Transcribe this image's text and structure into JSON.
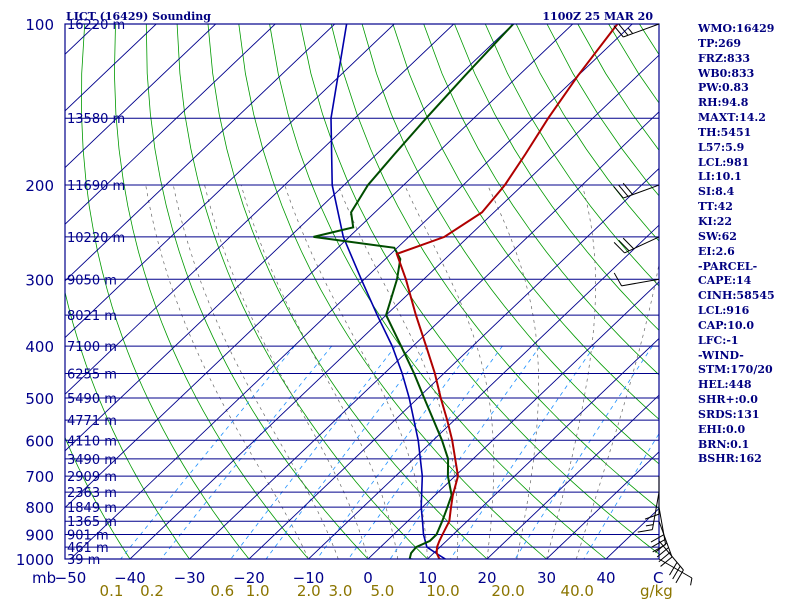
{
  "header": {
    "station": "LICT (16429) Sounding",
    "time": "1100Z 25 MAR 20"
  },
  "indices": [
    "WMO:16429",
    "TP:269",
    "FRZ:833",
    "WB0:833",
    "PW:0.83",
    "RH:94.8",
    "MAXT:14.2",
    "TH:5451",
    "L57:5.9",
    "LCL:981",
    "LI:10.1",
    "SI:8.4",
    "TT:42",
    "KI:22",
    "SW:62",
    "EI:2.6",
    "-PARCEL-",
    "CAPE:14",
    "CINH:58545",
    "LCL:916",
    "CAP:10.0",
    "LFC:-1",
    "-WIND-",
    "STM:170/20",
    "HEL:448",
    "SHR+:0.0",
    "SRDS:131",
    "EHI:0.0",
    "BRN:0.1",
    "BSHR:162"
  ],
  "colors": {
    "axis": "#00008b",
    "isobar": "#00008b",
    "isotherm": "#00008b",
    "dry_adiabat": "#009900",
    "mixing_ratio": "#1e90ff",
    "moist_adiabat": "#666666",
    "temperature": "#b00000",
    "dewpoint": "#004d00",
    "virtual_temp": "#0000aa",
    "mixing_ratio_labels": "#8b7500"
  },
  "chart_data": {
    "type": "skew-t log-p sounding",
    "pressure_unit": "mb",
    "temperature_unit": "C",
    "mixing_ratio_unit": "g/kg",
    "pressure_ticks": [
      100,
      200,
      300,
      400,
      500,
      600,
      700,
      800,
      900,
      1000
    ],
    "temperature_ticks": [
      -50,
      -40,
      -30,
      -20,
      -10,
      0,
      10,
      20,
      30,
      40
    ],
    "temperature_tick_labels": [
      "−50",
      "−40",
      "−30",
      "−20",
      "−10",
      "0",
      "10",
      "20",
      "30",
      "40"
    ],
    "temperature_corner_label": "C",
    "pressure_corner_label": "mb",
    "mixing_ratio_ticks": [
      {
        "value": 0.1,
        "label": "0.1"
      },
      {
        "value": 0.2,
        "label": "0.2"
      },
      {
        "value": 0.6,
        "label": "0.6"
      },
      {
        "value": 1.0,
        "label": "1.0"
      },
      {
        "value": 2.0,
        "label": "2.0"
      },
      {
        "value": 3.0,
        "label": "3.0"
      },
      {
        "value": 5.0,
        "label": "5.0"
      },
      {
        "value": 10.0,
        "label": "10.0"
      },
      {
        "value": 20.0,
        "label": "20.0"
      },
      {
        "value": 40.0,
        "label": "40.0"
      }
    ],
    "height_labels": [
      {
        "p": 100,
        "label": "16220 m"
      },
      {
        "p": 150,
        "label": "13580 m"
      },
      {
        "p": 200,
        "label": "11690 m"
      },
      {
        "p": 250,
        "label": "10220 m"
      },
      {
        "p": 300,
        "label": "9050 m"
      },
      {
        "p": 350,
        "label": "8021 m"
      },
      {
        "p": 400,
        "label": "7100 m"
      },
      {
        "p": 450,
        "label": "6255 m"
      },
      {
        "p": 500,
        "label": "5490 m"
      },
      {
        "p": 550,
        "label": "4771 m"
      },
      {
        "p": 600,
        "label": "4110 m"
      },
      {
        "p": 650,
        "label": "3490 m"
      },
      {
        "p": 700,
        "label": "2909 m"
      },
      {
        "p": 750,
        "label": "2363 m"
      },
      {
        "p": 800,
        "label": "1849 m"
      },
      {
        "p": 850,
        "label": "1365 m"
      },
      {
        "p": 900,
        "label": "901 m"
      },
      {
        "p": 950,
        "label": "461 m"
      },
      {
        "p": 1000,
        "label": "39 m"
      }
    ],
    "temperature_profile": [
      {
        "p": 1010,
        "t": 14.0
      },
      {
        "p": 1000,
        "t": 12.0
      },
      {
        "p": 975,
        "t": 10.5
      },
      {
        "p": 950,
        "t": 9.5
      },
      {
        "p": 925,
        "t": 8.8
      },
      {
        "p": 900,
        "t": 8.2
      },
      {
        "p": 850,
        "t": 7.0
      },
      {
        "p": 800,
        "t": 4.8
      },
      {
        "p": 760,
        "t": 3.0
      },
      {
        "p": 700,
        "t": 0.5
      },
      {
        "p": 650,
        "t": -3.0
      },
      {
        "p": 600,
        "t": -6.8
      },
      {
        "p": 550,
        "t": -11.2
      },
      {
        "p": 500,
        "t": -16.2
      },
      {
        "p": 450,
        "t": -21.5
      },
      {
        "p": 400,
        "t": -27.8
      },
      {
        "p": 350,
        "t": -35.0
      },
      {
        "p": 300,
        "t": -43.0
      },
      {
        "p": 269,
        "t": -49.0
      },
      {
        "p": 250,
        "t": -44.0
      },
      {
        "p": 225,
        "t": -42.0
      },
      {
        "p": 200,
        "t": -43.0
      },
      {
        "p": 175,
        "t": -45.0
      },
      {
        "p": 150,
        "t": -47.5
      },
      {
        "p": 125,
        "t": -50.0
      },
      {
        "p": 100,
        "t": -52.5
      }
    ],
    "dewpoint_profile": [
      {
        "p": 1010,
        "td": 10.0
      },
      {
        "p": 1000,
        "td": 7.0
      },
      {
        "p": 975,
        "td": 6.2
      },
      {
        "p": 950,
        "td": 6.0
      },
      {
        "p": 925,
        "td": 7.2
      },
      {
        "p": 900,
        "td": 7.2
      },
      {
        "p": 850,
        "td": 5.8
      },
      {
        "p": 800,
        "td": 4.2
      },
      {
        "p": 760,
        "td": 2.8
      },
      {
        "p": 700,
        "td": -1.2
      },
      {
        "p": 650,
        "td": -4.2
      },
      {
        "p": 600,
        "td": -8.5
      },
      {
        "p": 550,
        "td": -13.5
      },
      {
        "p": 500,
        "td": -19.0
      },
      {
        "p": 450,
        "td": -25.0
      },
      {
        "p": 400,
        "td": -32.0
      },
      {
        "p": 350,
        "td": -40.0
      },
      {
        "p": 300,
        "td": -44.5
      },
      {
        "p": 275,
        "td": -47.5
      },
      {
        "p": 262,
        "td": -50.5
      },
      {
        "p": 250,
        "td": -66.0
      },
      {
        "p": 240,
        "td": -61.0
      },
      {
        "p": 225,
        "td": -64.0
      },
      {
        "p": 200,
        "td": -66.0
      },
      {
        "p": 175,
        "td": -67.0
      },
      {
        "p": 150,
        "td": -68.0
      },
      {
        "p": 125,
        "td": -69.0
      },
      {
        "p": 100,
        "td": -70.0
      }
    ],
    "parcel_profile": [
      {
        "p": 1010,
        "t": 14.0
      },
      {
        "p": 981,
        "t": 11.0
      },
      {
        "p": 950,
        "t": 7.8
      },
      {
        "p": 900,
        "t": 5.0
      },
      {
        "p": 850,
        "t": 2.5
      },
      {
        "p": 800,
        "t": -0.2
      },
      {
        "p": 700,
        "t": -5.5
      },
      {
        "p": 600,
        "t": -12.5
      },
      {
        "p": 500,
        "t": -21.5
      },
      {
        "p": 450,
        "t": -27.0
      },
      {
        "p": 400,
        "t": -33.5
      },
      {
        "p": 350,
        "t": -41.5
      },
      {
        "p": 300,
        "t": -50.5
      },
      {
        "p": 250,
        "t": -61.0
      },
      {
        "p": 200,
        "t": -72.0
      },
      {
        "p": 150,
        "t": -84.0
      },
      {
        "p": 100,
        "t": -98.0
      }
    ],
    "wind_barbs": [
      {
        "p": 100,
        "dir": 250,
        "spd": 25
      },
      {
        "p": 200,
        "dir": 250,
        "spd": 30
      },
      {
        "p": 250,
        "dir": 245,
        "spd": 30
      },
      {
        "p": 300,
        "dir": 260,
        "spd": 10
      },
      {
        "p": 700,
        "dir": 180,
        "spd": 10
      },
      {
        "p": 750,
        "dir": 190,
        "spd": 15
      },
      {
        "p": 800,
        "dir": 170,
        "spd": 30
      },
      {
        "p": 850,
        "dir": 160,
        "spd": 40
      },
      {
        "p": 925,
        "dir": 140,
        "spd": 30
      },
      {
        "p": 1000,
        "dir": 120,
        "spd": 5
      }
    ]
  }
}
